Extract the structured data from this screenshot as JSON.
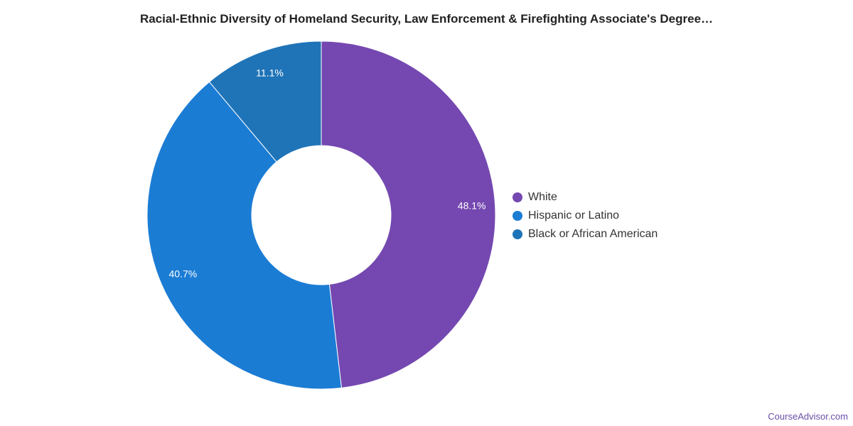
{
  "chart_data": {
    "type": "pie",
    "title": "Racial-Ethnic Diversity of Homeland Security, Law Enforcement & Firefighting Associate's Degree…",
    "donut": true,
    "legend_position": "right",
    "slices": [
      {
        "label": "White",
        "value": 48.1,
        "display": "48.1%",
        "color": "#7448b0"
      },
      {
        "label": "Hispanic or Latino",
        "value": 40.7,
        "display": "40.7%",
        "color": "#1b7cd4"
      },
      {
        "label": "Black or African American",
        "value": 11.1,
        "display": "11.1%",
        "color": "#1f74b8"
      }
    ]
  },
  "watermark": "CourseAdvisor.com"
}
